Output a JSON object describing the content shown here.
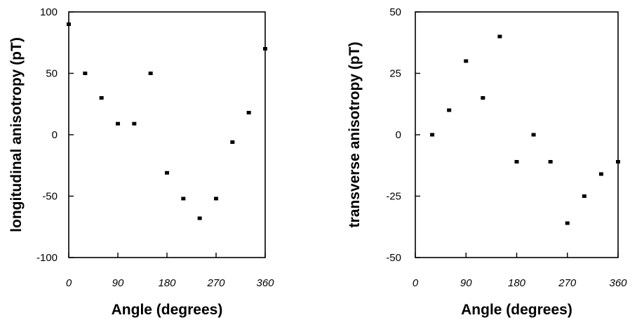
{
  "chart_data": [
    {
      "type": "scatter",
      "title": "",
      "xlabel": "Angle  (degrees)",
      "ylabel": "longitudinal anisotropy  (pT)",
      "xlim": [
        0,
        360
      ],
      "ylim": [
        -100,
        100
      ],
      "xticks": [
        0,
        90,
        180,
        270,
        360
      ],
      "xtick_labels": [
        "0",
        "90",
        "180",
        "270",
        "360"
      ],
      "yticks": [
        100,
        50,
        0,
        -50,
        -100
      ],
      "ytick_labels": [
        "100",
        "50",
        "0",
        "-50",
        "-100"
      ],
      "grid": false,
      "points": [
        {
          "x": 0,
          "y": 90
        },
        {
          "x": 30,
          "y": 50
        },
        {
          "x": 60,
          "y": 30
        },
        {
          "x": 90,
          "y": 9
        },
        {
          "x": 120,
          "y": 9
        },
        {
          "x": 150,
          "y": 50
        },
        {
          "x": 180,
          "y": -31
        },
        {
          "x": 210,
          "y": -52
        },
        {
          "x": 240,
          "y": -68
        },
        {
          "x": 270,
          "y": -52
        },
        {
          "x": 300,
          "y": -6
        },
        {
          "x": 330,
          "y": 18
        },
        {
          "x": 360,
          "y": 70
        }
      ]
    },
    {
      "type": "scatter",
      "title": "",
      "xlabel": "Angle  (degrees)",
      "ylabel": "transverse anisotropy  (pT)",
      "xlim": [
        0,
        360
      ],
      "ylim": [
        -50,
        50
      ],
      "xticks": [
        0,
        90,
        180,
        270,
        360
      ],
      "xtick_labels": [
        "0",
        "90",
        "180",
        "270",
        "360"
      ],
      "yticks": [
        50,
        25,
        0,
        -25,
        -50
      ],
      "ytick_labels": [
        "50",
        "25",
        "0",
        "-25",
        "-50"
      ],
      "grid": false,
      "points": [
        {
          "x": 30,
          "y": 0
        },
        {
          "x": 60,
          "y": 10
        },
        {
          "x": 90,
          "y": 30
        },
        {
          "x": 120,
          "y": 15
        },
        {
          "x": 150,
          "y": 40
        },
        {
          "x": 180,
          "y": -11
        },
        {
          "x": 210,
          "y": 0
        },
        {
          "x": 240,
          "y": -11
        },
        {
          "x": 270,
          "y": -36
        },
        {
          "x": 300,
          "y": -25
        },
        {
          "x": 330,
          "y": -16
        },
        {
          "x": 360,
          "y": -11
        }
      ]
    }
  ]
}
